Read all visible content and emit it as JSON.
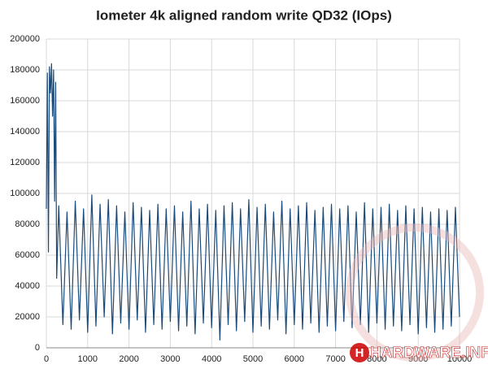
{
  "chart_data": {
    "type": "line",
    "title": "Iometer 4k aligned random write QD32 (IOps)",
    "watermark": "HARDWARE.INFO",
    "xlim": [
      0,
      10000
    ],
    "xticks": [
      0,
      1000,
      2000,
      3000,
      4000,
      5000,
      6000,
      7000,
      8000,
      9000,
      10000
    ],
    "ylim": [
      0,
      200000
    ],
    "yticks": [
      0,
      20000,
      40000,
      60000,
      80000,
      100000,
      120000,
      140000,
      160000,
      180000,
      200000
    ],
    "grid": true,
    "series": [
      {
        "color": "#1b4a79",
        "x": [
          0,
          25,
          50,
          75,
          100,
          125,
          150,
          175,
          200,
          225,
          250,
          300,
          400,
          500,
          600,
          700,
          800,
          900,
          1000,
          1100,
          1200,
          1300,
          1400,
          1500,
          1600,
          1700,
          1800,
          1900,
          2000,
          2100,
          2200,
          2300,
          2400,
          2500,
          2600,
          2700,
          2800,
          2900,
          3000,
          3100,
          3200,
          3300,
          3400,
          3500,
          3600,
          3700,
          3800,
          3900,
          4000,
          4100,
          4200,
          4300,
          4400,
          4500,
          4600,
          4700,
          4800,
          4900,
          5000,
          5100,
          5200,
          5300,
          5400,
          5500,
          5600,
          5700,
          5800,
          5900,
          6000,
          6100,
          6200,
          6300,
          6400,
          6500,
          6600,
          6700,
          6800,
          6900,
          7000,
          7100,
          7200,
          7300,
          7400,
          7500,
          7600,
          7700,
          7800,
          7900,
          8000,
          8100,
          8200,
          8300,
          8400,
          8500,
          8600,
          8700,
          8800,
          8900,
          9000,
          9100,
          9200,
          9300,
          9400,
          9500,
          9600,
          9700,
          9800,
          9900,
          10000
        ],
        "values": [
          90000,
          178000,
          62000,
          182000,
          165000,
          184000,
          150000,
          180000,
          95000,
          172000,
          45000,
          92000,
          15000,
          88000,
          12000,
          95000,
          18000,
          90000,
          10000,
          99000,
          14000,
          93000,
          20000,
          96000,
          9000,
          92000,
          16000,
          88000,
          12000,
          94000,
          18000,
          91000,
          10000,
          89000,
          15000,
          93000,
          12000,
          90000,
          17000,
          92000,
          11000,
          88000,
          14000,
          95000,
          9000,
          90000,
          16000,
          93000,
          13000,
          89000,
          5000,
          92000,
          15000,
          94000,
          11000,
          90000,
          17000,
          96000,
          10000,
          91000,
          14000,
          93000,
          12000,
          88000,
          18000,
          95000,
          9000,
          90000,
          15000,
          92000,
          12000,
          94000,
          16000,
          89000,
          10000,
          91000,
          14000,
          93000,
          11000,
          90000,
          17000,
          92000,
          13000,
          88000,
          15000,
          94000,
          10000,
          90000,
          16000,
          91000,
          12000,
          93000,
          14000,
          89000,
          11000,
          92000,
          15000,
          90000,
          9000,
          91000,
          13000,
          88000,
          10000,
          90000,
          12000,
          89000,
          14000,
          91000,
          20000
        ]
      }
    ]
  }
}
